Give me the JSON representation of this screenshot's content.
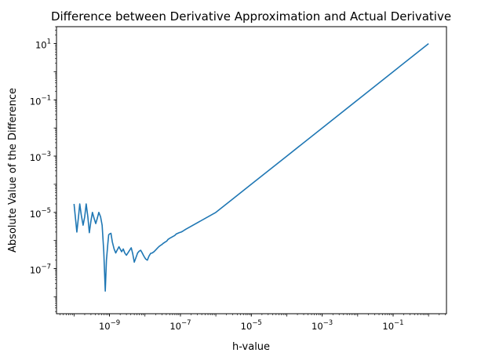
{
  "chart_data": {
    "type": "line",
    "title": "Difference between Derivative Approximation and Actual Derivative",
    "xlabel": "h-value",
    "ylabel": "Absolute Value of the Difference",
    "xscale": "log",
    "yscale": "log",
    "xlim": [
      3.2e-11,
      3.2
    ],
    "ylim": [
      2.5e-09,
      40
    ],
    "grid": false,
    "x_ticks": [
      {
        "exp": -9,
        "label": "10",
        "sup": "−9"
      },
      {
        "exp": -7,
        "label": "10",
        "sup": "−7"
      },
      {
        "exp": -5,
        "label": "10",
        "sup": "−5"
      },
      {
        "exp": -3,
        "label": "10",
        "sup": "−3"
      },
      {
        "exp": -1,
        "label": "10",
        "sup": "−1"
      }
    ],
    "y_ticks": [
      {
        "exp": 1,
        "label": "10",
        "sup": "1"
      },
      {
        "exp": -1,
        "label": "10",
        "sup": "−1"
      },
      {
        "exp": -3,
        "label": "10",
        "sup": "−3"
      },
      {
        "exp": -5,
        "label": "10",
        "sup": "−5"
      },
      {
        "exp": -7,
        "label": "10",
        "sup": "−7"
      }
    ],
    "series": [
      {
        "color": "#1f77b4",
        "x": [
          1e-10,
          1.1e-10,
          1.2e-10,
          1.35e-10,
          1.45e-10,
          1.6e-10,
          1.8e-10,
          2e-10,
          2.2e-10,
          2.45e-10,
          2.7e-10,
          3e-10,
          3.3e-10,
          3.7e-10,
          4.1e-10,
          4.5e-10,
          5e-10,
          5.6e-10,
          6.2e-10,
          6.9e-10,
          7.6e-10,
          8.2e-10,
          9e-10,
          9.5e-10,
          1e-09,
          1.1e-09,
          1.2e-09,
          1.35e-09,
          1.5e-09,
          1.65e-09,
          1.85e-09,
          2e-09,
          2.2e-09,
          2.45e-09,
          2.7e-09,
          3e-09,
          3.3e-09,
          3.7e-09,
          4.1e-09,
          4.5e-09,
          5e-09,
          5.6e-09,
          6.2e-09,
          6.9e-09,
          7.6e-09,
          8.4e-09,
          9.3e-09,
          1.05e-08,
          1.17e-08,
          1.3e-08,
          1.45e-08,
          1.6e-08,
          1.8e-08,
          2e-08,
          2.2e-08,
          2.45e-08,
          2.7e-08,
          3e-08,
          3.3e-08,
          3.7e-08,
          4.1e-08,
          4.5e-08,
          5e-08,
          5.6e-08,
          6.2e-08,
          6.9e-08,
          7.6e-08,
          8.4e-08,
          9.3e-08,
          1.05e-07,
          1.2e-07,
          1.4e-07,
          1e-06,
          1e-05,
          0.0001,
          0.001,
          0.01,
          0.1,
          1
        ],
        "y": [
          2e-05,
          6e-06,
          2e-06,
          8e-06,
          2e-05,
          8e-06,
          3.5e-06,
          7e-06,
          2e-05,
          7e-06,
          1.9e-06,
          5e-06,
          1e-05,
          6e-06,
          4e-06,
          6e-06,
          1e-05,
          7e-06,
          3.5e-06,
          4e-07,
          1.6e-08,
          2e-07,
          8e-07,
          1.6e-06,
          1.7e-06,
          1.8e-06,
          9e-07,
          5e-07,
          3.6e-07,
          4.6e-07,
          6e-07,
          5e-07,
          4e-07,
          5e-07,
          3.6e-07,
          3e-07,
          3.6e-07,
          4.5e-07,
          5.5e-07,
          3.5e-07,
          1.7e-07,
          2.5e-07,
          3.6e-07,
          4.2e-07,
          4.5e-07,
          3.6e-07,
          2.8e-07,
          2.2e-07,
          2e-07,
          2.8e-07,
          3.5e-07,
          3.6e-07,
          4e-07,
          4.6e-07,
          5.2e-07,
          6e-07,
          6.6e-07,
          7.2e-07,
          8e-07,
          8.8e-07,
          9.5e-07,
          1.1e-06,
          1.2e-06,
          1.3e-06,
          1.4e-06,
          1.5e-06,
          1.7e-06,
          1.8e-06,
          1.9e-06,
          2e-06,
          2.2e-06,
          2.5e-06,
          1e-05,
          0.0001,
          0.001,
          0.01,
          0.1,
          1,
          10
        ]
      }
    ]
  }
}
